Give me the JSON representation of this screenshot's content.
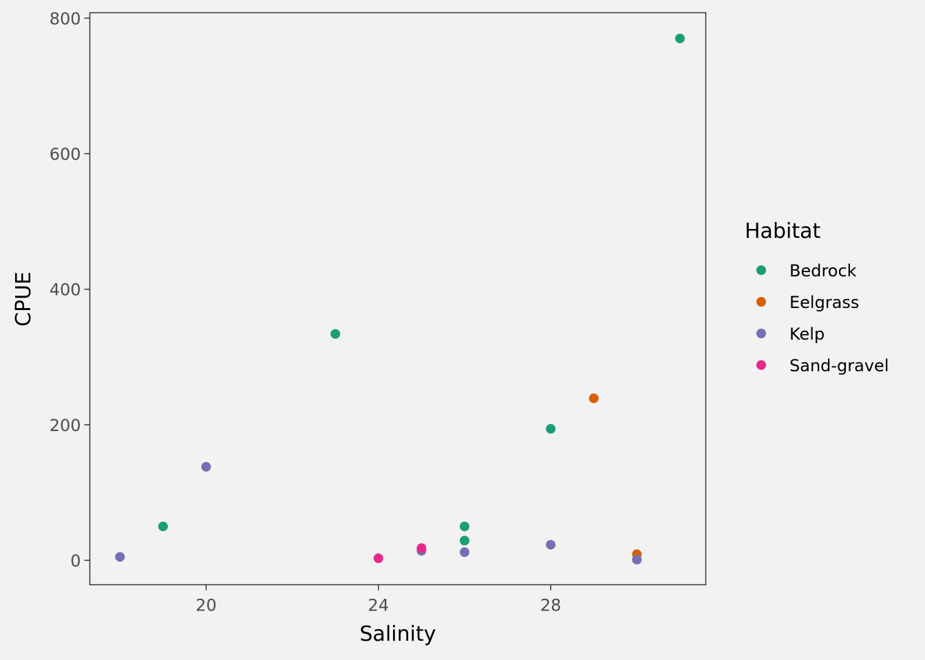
{
  "chart_data": {
    "type": "scatter",
    "title": "",
    "xlabel": "Salinity",
    "ylabel": "CPUE",
    "xlim": [
      17.3,
      31.6
    ],
    "ylim": [
      -36,
      808
    ],
    "x_ticks": [
      20,
      24,
      28
    ],
    "y_ticks": [
      0,
      200,
      400,
      600,
      800
    ],
    "grid": false,
    "legend_title": "Habitat",
    "legend_position": "right",
    "series": [
      {
        "name": "Bedrock",
        "color": "#1b9e77",
        "points": [
          {
            "x": 19,
            "y": 50
          },
          {
            "x": 23,
            "y": 334
          },
          {
            "x": 26,
            "y": 50
          },
          {
            "x": 26,
            "y": 29
          },
          {
            "x": 28,
            "y": 194
          },
          {
            "x": 31,
            "y": 770
          }
        ]
      },
      {
        "name": "Eelgrass",
        "color": "#d95f02",
        "points": [
          {
            "x": 29,
            "y": 239
          },
          {
            "x": 30,
            "y": 9
          }
        ]
      },
      {
        "name": "Kelp",
        "color": "#7570b3",
        "points": [
          {
            "x": 18,
            "y": 5
          },
          {
            "x": 20,
            "y": 138
          },
          {
            "x": 25,
            "y": 14
          },
          {
            "x": 26,
            "y": 12
          },
          {
            "x": 28,
            "y": 23
          },
          {
            "x": 30,
            "y": 1
          }
        ]
      },
      {
        "name": "Sand-gravel",
        "color": "#e7298a",
        "points": [
          {
            "x": 24,
            "y": 3
          },
          {
            "x": 25,
            "y": 18
          }
        ]
      }
    ]
  }
}
